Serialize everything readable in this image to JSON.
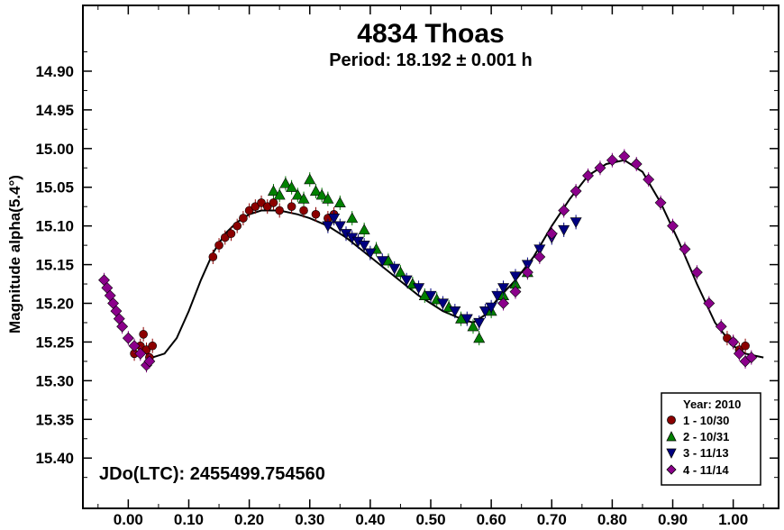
{
  "chart_data": {
    "type": "scatter",
    "title": "4834 Thoas",
    "subtitle": "Period: 18.192 ± 0.001 h",
    "xlabel": "",
    "ylabel": "Magnitude alpha(5.4°)",
    "xlim": [
      -0.075,
      1.075
    ],
    "ylim": [
      14.815,
      15.465
    ],
    "y_inverted": true,
    "xticks": [
      "0.00",
      "0.10",
      "0.20",
      "0.30",
      "0.40",
      "0.50",
      "0.60",
      "0.70",
      "0.80",
      "0.90",
      "1.00"
    ],
    "yticks": [
      "14.90",
      "14.95",
      "15.00",
      "15.05",
      "15.10",
      "15.15",
      "15.20",
      "15.25",
      "15.30",
      "15.35",
      "15.40"
    ],
    "annotation": "JDo(LTC): 2455499.754560",
    "legend": {
      "title": "Year: 2010",
      "position": "bottom-right",
      "entries": [
        "1 - 10/30",
        "2 - 10/31",
        "3 - 11/13",
        "4 - 11/14"
      ]
    },
    "model_curve": {
      "color": "#000000",
      "points": [
        [
          0.04,
          15.27
        ],
        [
          0.06,
          15.265
        ],
        [
          0.08,
          15.245
        ],
        [
          0.1,
          15.21
        ],
        [
          0.12,
          15.17
        ],
        [
          0.14,
          15.135
        ],
        [
          0.16,
          15.11
        ],
        [
          0.18,
          15.095
        ],
        [
          0.2,
          15.085
        ],
        [
          0.22,
          15.08
        ],
        [
          0.25,
          15.08
        ],
        [
          0.28,
          15.085
        ],
        [
          0.3,
          15.09
        ],
        [
          0.33,
          15.1
        ],
        [
          0.36,
          15.115
        ],
        [
          0.4,
          15.14
        ],
        [
          0.44,
          15.165
        ],
        [
          0.48,
          15.19
        ],
        [
          0.52,
          15.21
        ],
        [
          0.55,
          15.22
        ],
        [
          0.57,
          15.225
        ],
        [
          0.59,
          15.215
        ],
        [
          0.61,
          15.195
        ],
        [
          0.64,
          15.17
        ],
        [
          0.67,
          15.14
        ],
        [
          0.7,
          15.1
        ],
        [
          0.73,
          15.065
        ],
        [
          0.76,
          15.035
        ],
        [
          0.79,
          15.02
        ],
        [
          0.82,
          15.015
        ],
        [
          0.85,
          15.03
        ],
        [
          0.88,
          15.07
        ],
        [
          0.91,
          15.12
        ],
        [
          0.94,
          15.175
        ],
        [
          0.97,
          15.225
        ],
        [
          1.0,
          15.255
        ],
        [
          1.02,
          15.265
        ],
        [
          1.05,
          15.27
        ]
      ]
    },
    "series": [
      {
        "name": "1 - 10/30",
        "marker": "circle",
        "color": "#8b0000",
        "points": [
          [
            0.01,
            15.265
          ],
          [
            0.02,
            15.255
          ],
          [
            0.025,
            15.24
          ],
          [
            0.03,
            15.26
          ],
          [
            0.035,
            15.27
          ],
          [
            0.04,
            15.255
          ],
          [
            0.14,
            15.14
          ],
          [
            0.15,
            15.125
          ],
          [
            0.16,
            15.115
          ],
          [
            0.17,
            15.11
          ],
          [
            0.18,
            15.1
          ],
          [
            0.19,
            15.09
          ],
          [
            0.2,
            15.08
          ],
          [
            0.21,
            15.075
          ],
          [
            0.22,
            15.07
          ],
          [
            0.23,
            15.075
          ],
          [
            0.24,
            15.07
          ],
          [
            0.25,
            15.08
          ],
          [
            0.27,
            15.075
          ],
          [
            0.29,
            15.08
          ],
          [
            0.31,
            15.085
          ],
          [
            0.33,
            15.09
          ],
          [
            0.34,
            15.085
          ],
          [
            0.99,
            15.245
          ],
          [
            1.0,
            15.25
          ],
          [
            1.01,
            15.26
          ],
          [
            1.02,
            15.255
          ]
        ]
      },
      {
        "name": "2 - 10/31",
        "marker": "triangle-up",
        "color": "#008000",
        "points": [
          [
            0.24,
            15.055
          ],
          [
            0.25,
            15.06
          ],
          [
            0.26,
            15.045
          ],
          [
            0.27,
            15.05
          ],
          [
            0.28,
            15.06
          ],
          [
            0.29,
            15.065
          ],
          [
            0.3,
            15.04
          ],
          [
            0.31,
            15.055
          ],
          [
            0.32,
            15.06
          ],
          [
            0.33,
            15.065
          ],
          [
            0.35,
            15.07
          ],
          [
            0.37,
            15.09
          ],
          [
            0.39,
            15.105
          ],
          [
            0.41,
            15.13
          ],
          [
            0.43,
            15.145
          ],
          [
            0.45,
            15.16
          ],
          [
            0.47,
            15.175
          ],
          [
            0.49,
            15.19
          ],
          [
            0.51,
            15.195
          ],
          [
            0.53,
            15.205
          ],
          [
            0.55,
            15.22
          ],
          [
            0.57,
            15.23
          ],
          [
            0.58,
            15.245
          ],
          [
            0.6,
            15.21
          ],
          [
            0.62,
            15.19
          ],
          [
            0.64,
            15.175
          ],
          [
            0.66,
            15.16
          ]
        ]
      },
      {
        "name": "3 - 11/13",
        "marker": "triangle-down",
        "color": "#000080",
        "points": [
          [
            0.33,
            15.1
          ],
          [
            0.34,
            15.09
          ],
          [
            0.35,
            15.1
          ],
          [
            0.36,
            15.11
          ],
          [
            0.37,
            15.115
          ],
          [
            0.38,
            15.12
          ],
          [
            0.39,
            15.125
          ],
          [
            0.4,
            15.135
          ],
          [
            0.42,
            15.145
          ],
          [
            0.44,
            15.155
          ],
          [
            0.46,
            15.17
          ],
          [
            0.48,
            15.18
          ],
          [
            0.5,
            15.19
          ],
          [
            0.52,
            15.2
          ],
          [
            0.54,
            15.21
          ],
          [
            0.56,
            15.22
          ],
          [
            0.58,
            15.225
          ],
          [
            0.59,
            15.21
          ],
          [
            0.6,
            15.205
          ],
          [
            0.61,
            15.19
          ],
          [
            0.62,
            15.18
          ],
          [
            0.64,
            15.165
          ],
          [
            0.66,
            15.15
          ],
          [
            0.68,
            15.13
          ],
          [
            0.7,
            15.115
          ],
          [
            0.72,
            15.105
          ],
          [
            0.74,
            15.095
          ]
        ]
      },
      {
        "name": "4 - 11/14",
        "marker": "diamond",
        "color": "#8b008b",
        "points": [
          [
            -0.04,
            15.17
          ],
          [
            -0.035,
            15.18
          ],
          [
            -0.03,
            15.19
          ],
          [
            -0.025,
            15.2
          ],
          [
            -0.02,
            15.21
          ],
          [
            -0.015,
            15.22
          ],
          [
            -0.01,
            15.23
          ],
          [
            0.0,
            15.245
          ],
          [
            0.01,
            15.255
          ],
          [
            0.02,
            15.265
          ],
          [
            0.03,
            15.28
          ],
          [
            0.035,
            15.275
          ],
          [
            0.62,
            15.2
          ],
          [
            0.64,
            15.185
          ],
          [
            0.66,
            15.16
          ],
          [
            0.68,
            15.14
          ],
          [
            0.7,
            15.11
          ],
          [
            0.72,
            15.08
          ],
          [
            0.74,
            15.055
          ],
          [
            0.76,
            15.035
          ],
          [
            0.78,
            15.025
          ],
          [
            0.8,
            15.015
          ],
          [
            0.82,
            15.01
          ],
          [
            0.84,
            15.02
          ],
          [
            0.86,
            15.04
          ],
          [
            0.88,
            15.07
          ],
          [
            0.9,
            15.1
          ],
          [
            0.92,
            15.13
          ],
          [
            0.94,
            15.16
          ],
          [
            0.96,
            15.2
          ],
          [
            0.98,
            15.23
          ],
          [
            1.0,
            15.25
          ],
          [
            1.01,
            15.265
          ],
          [
            1.02,
            15.275
          ],
          [
            1.03,
            15.27
          ]
        ]
      }
    ]
  }
}
